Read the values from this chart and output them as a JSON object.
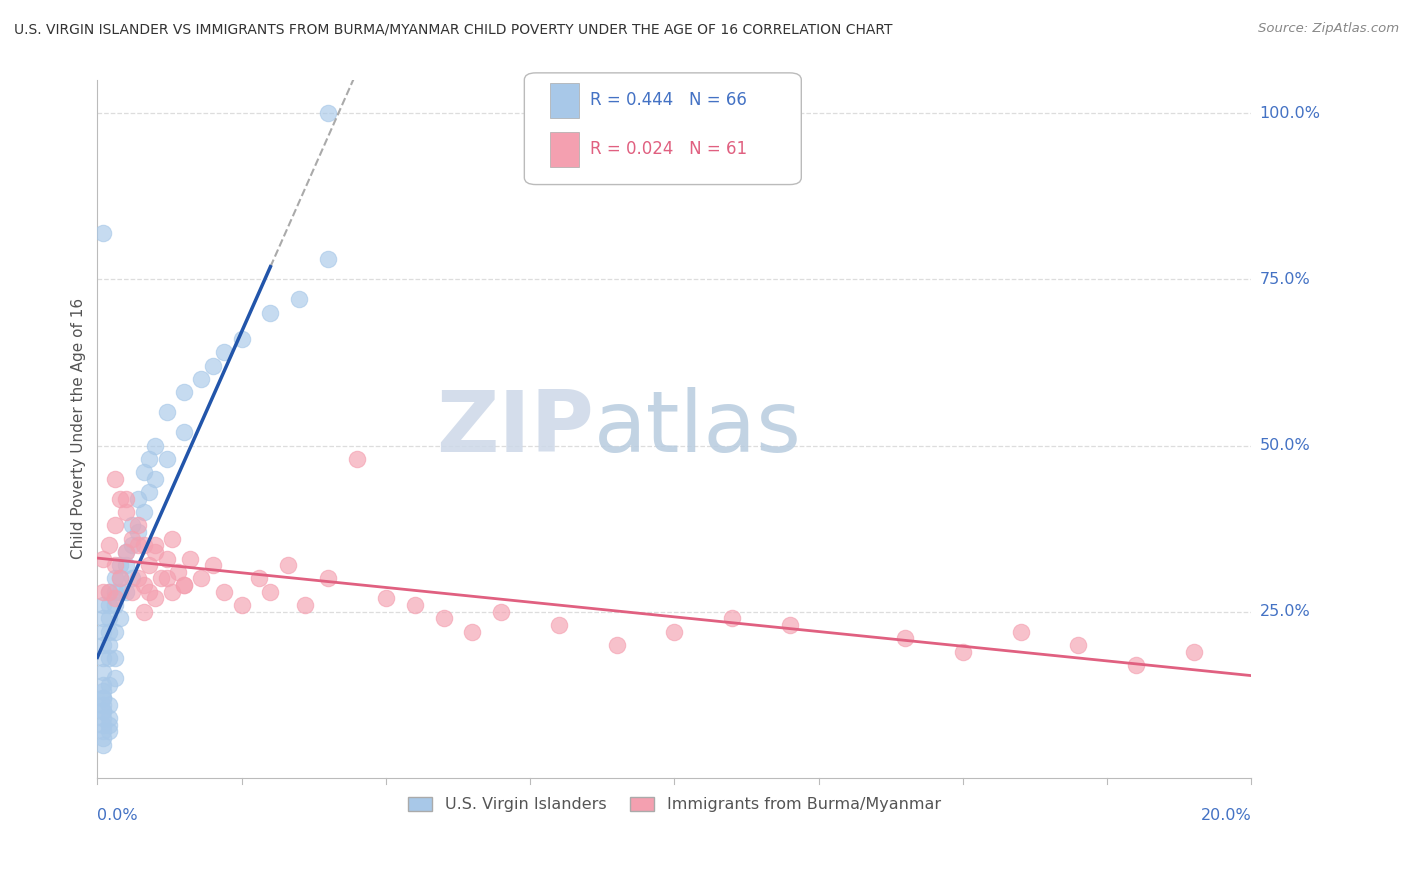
{
  "title": "U.S. VIRGIN ISLANDER VS IMMIGRANTS FROM BURMA/MYANMAR CHILD POVERTY UNDER THE AGE OF 16 CORRELATION CHART",
  "source": "Source: ZipAtlas.com",
  "ylabel": "Child Poverty Under the Age of 16",
  "legend_blue_r": "R = 0.444",
  "legend_blue_n": "N = 66",
  "legend_pink_r": "R = 0.024",
  "legend_pink_n": "N = 61",
  "blue_color": "#a8c8e8",
  "pink_color": "#f4a0b0",
  "blue_line_color": "#2255aa",
  "pink_line_color": "#e06080",
  "axis_color": "#4472c4",
  "watermark_zip_color": "#d0dff0",
  "watermark_atlas_color": "#c0d5e8",
  "grid_color": "#dddddd",
  "blue_x": [
    0.001,
    0.001,
    0.001,
    0.001,
    0.001,
    0.001,
    0.001,
    0.001,
    0.002,
    0.002,
    0.002,
    0.002,
    0.002,
    0.002,
    0.002,
    0.003,
    0.003,
    0.003,
    0.003,
    0.003,
    0.004,
    0.004,
    0.004,
    0.004,
    0.005,
    0.005,
    0.005,
    0.006,
    0.006,
    0.006,
    0.007,
    0.007,
    0.008,
    0.008,
    0.009,
    0.009,
    0.01,
    0.01,
    0.012,
    0.012,
    0.015,
    0.015,
    0.018,
    0.02,
    0.022,
    0.025,
    0.03,
    0.035,
    0.04,
    0.001,
    0.001,
    0.002,
    0.002,
    0.001,
    0.001,
    0.001,
    0.001,
    0.001,
    0.001,
    0.001,
    0.003,
    0.002,
    0.002,
    0.001,
    0.001,
    0.04
  ],
  "blue_y": [
    0.26,
    0.24,
    0.22,
    0.2,
    0.18,
    0.16,
    0.14,
    0.12,
    0.28,
    0.26,
    0.24,
    0.22,
    0.2,
    0.18,
    0.14,
    0.3,
    0.28,
    0.26,
    0.22,
    0.18,
    0.32,
    0.3,
    0.28,
    0.24,
    0.34,
    0.32,
    0.28,
    0.38,
    0.35,
    0.3,
    0.42,
    0.37,
    0.46,
    0.4,
    0.48,
    0.43,
    0.5,
    0.45,
    0.55,
    0.48,
    0.58,
    0.52,
    0.6,
    0.62,
    0.64,
    0.66,
    0.7,
    0.72,
    0.78,
    0.82,
    0.1,
    0.08,
    0.07,
    0.08,
    0.09,
    0.11,
    0.12,
    0.13,
    0.1,
    0.07,
    0.15,
    0.11,
    0.09,
    0.06,
    0.05,
    1.0
  ],
  "pink_x": [
    0.001,
    0.001,
    0.002,
    0.002,
    0.003,
    0.003,
    0.003,
    0.004,
    0.004,
    0.005,
    0.005,
    0.006,
    0.006,
    0.007,
    0.007,
    0.008,
    0.008,
    0.008,
    0.009,
    0.009,
    0.01,
    0.01,
    0.011,
    0.012,
    0.013,
    0.013,
    0.014,
    0.015,
    0.016,
    0.018,
    0.02,
    0.022,
    0.025,
    0.028,
    0.03,
    0.033,
    0.036,
    0.04,
    0.045,
    0.05,
    0.055,
    0.06,
    0.065,
    0.07,
    0.08,
    0.09,
    0.1,
    0.11,
    0.12,
    0.14,
    0.15,
    0.16,
    0.17,
    0.18,
    0.19,
    0.003,
    0.005,
    0.007,
    0.01,
    0.012,
    0.015
  ],
  "pink_y": [
    0.33,
    0.28,
    0.35,
    0.28,
    0.38,
    0.32,
    0.27,
    0.42,
    0.3,
    0.4,
    0.34,
    0.36,
    0.28,
    0.38,
    0.3,
    0.35,
    0.29,
    0.25,
    0.32,
    0.28,
    0.34,
    0.27,
    0.3,
    0.33,
    0.36,
    0.28,
    0.31,
    0.29,
    0.33,
    0.3,
    0.32,
    0.28,
    0.26,
    0.3,
    0.28,
    0.32,
    0.26,
    0.3,
    0.48,
    0.27,
    0.26,
    0.24,
    0.22,
    0.25,
    0.23,
    0.2,
    0.22,
    0.24,
    0.23,
    0.21,
    0.19,
    0.22,
    0.2,
    0.17,
    0.19,
    0.45,
    0.42,
    0.35,
    0.35,
    0.3,
    0.29
  ],
  "xlim": [
    0,
    0.2
  ],
  "ylim": [
    0,
    1.05
  ],
  "yticks": [
    0.25,
    0.5,
    0.75,
    1.0
  ],
  "ytick_labels": [
    "25.0%",
    "50.0%",
    "75.0%",
    "100.0%"
  ],
  "xtick_labels": [
    "0.0%",
    "20.0%"
  ]
}
